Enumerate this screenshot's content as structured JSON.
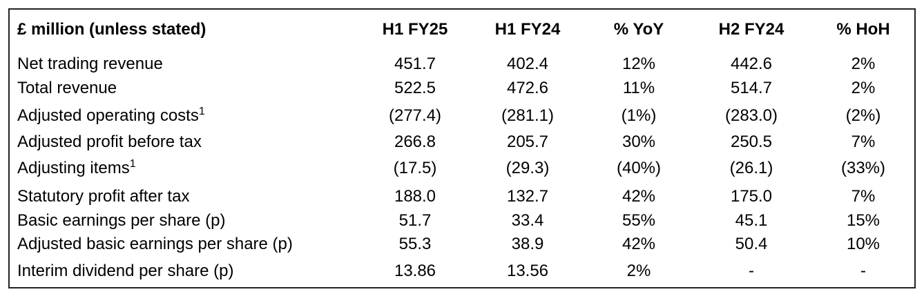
{
  "table": {
    "header": [
      "£ million (unless stated)",
      "H1 FY25",
      "H1 FY24",
      "% YoY",
      "H2 FY24",
      "% HoH"
    ],
    "rows": [
      {
        "label": "Net trading revenue",
        "cells": [
          "451.7",
          "402.4",
          "12%",
          "442.6",
          "2%"
        ]
      },
      {
        "label": "Total revenue",
        "cells": [
          "522.5",
          "472.6",
          "11%",
          "514.7",
          "2%"
        ]
      },
      {
        "label": "Adjusted operating costs",
        "note": "1",
        "cells": [
          "(277.4)",
          "(281.1)",
          "(1%)",
          "(283.0)",
          "(2%)"
        ]
      },
      {
        "label": "Adjusted profit before tax",
        "cells": [
          "266.8",
          "205.7",
          "30%",
          "250.5",
          "7%"
        ]
      },
      {
        "label": "Adjusting items",
        "note": "1",
        "cells": [
          "(17.5)",
          "(29.3)",
          "(40%)",
          "(26.1)",
          "(33%)"
        ]
      },
      {
        "label": "Statutory profit after tax",
        "cells": [
          "188.0",
          "132.7",
          "42%",
          "175.0",
          "7%"
        ]
      },
      {
        "label": "Basic earnings per share (p)",
        "cells": [
          "51.7",
          "33.4",
          "55%",
          "45.1",
          "15%"
        ]
      },
      {
        "label": "Adjusted basic earnings per share (p)",
        "cells": [
          "55.3",
          "38.9",
          "42%",
          "50.4",
          "10%"
        ]
      },
      {
        "label": "Interim dividend per share (p)",
        "cells": [
          "13.86",
          "13.56",
          "2%",
          "-",
          "-"
        ]
      }
    ]
  }
}
